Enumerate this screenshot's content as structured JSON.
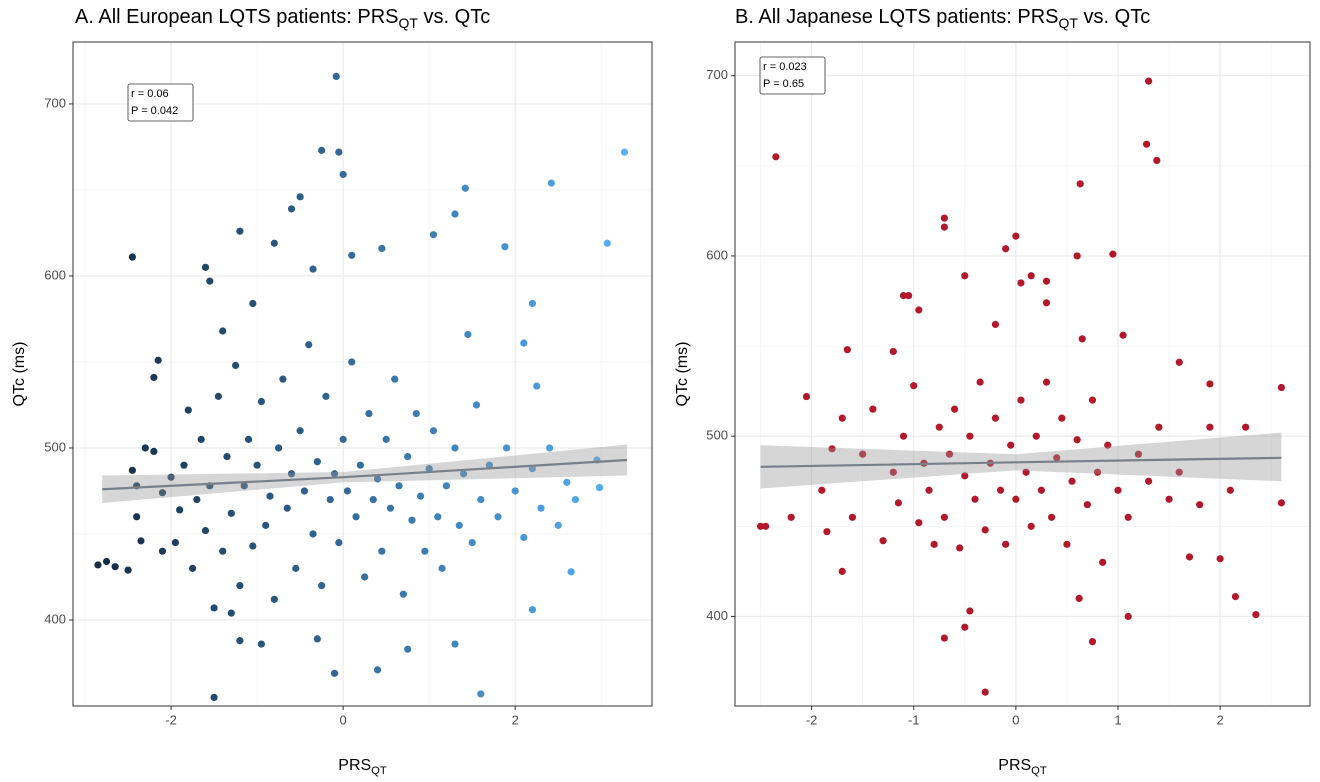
{
  "chart_data": [
    {
      "type": "scatter",
      "title": {
        "main": "A. All European LQTS patients: PRS",
        "sub": "QT",
        "rest": " vs. QTc"
      },
      "xlabel": {
        "main": "PRS",
        "sub": "QT"
      },
      "ylabel": "QTc (ms)",
      "annotation": [
        "r =  0.06",
        "P = 0.042"
      ],
      "color_scale": [
        "#132B43",
        "#56B1F7"
      ],
      "xlim": [
        -3.14,
        3.59
      ],
      "ylim": [
        350,
        736
      ],
      "xticks": [
        -2,
        0,
        2
      ],
      "yticks": [
        400,
        500,
        600,
        700
      ],
      "xminor": [
        -3,
        -1,
        1,
        3
      ],
      "yminor": [
        450,
        550,
        650
      ],
      "grid": true,
      "x": [
        -0.08,
        -0.05,
        -0.25,
        0,
        -0.5,
        3.27,
        3.07,
        2.42,
        1.42,
        1.3,
        -2.45,
        -1.6,
        -1.2,
        1.88,
        2.2,
        -1.55,
        -1.5,
        1.6,
        0.4,
        -0.1,
        0.75,
        -0.3,
        -2.85,
        -2.75,
        -2.65,
        -2.5,
        -2.1,
        2.2,
        2.65,
        2.95,
        2.98,
        1.3,
        -1.3,
        -1.2,
        -0.95,
        -2.2,
        -2.15,
        -1.4,
        -0.8,
        -0.6,
        0.1,
        0.45,
        1.05,
        2.1,
        2.25,
        1.45,
        -1.05,
        -0.35,
        -2.45,
        -2.4,
        -2.3,
        -2.35,
        -2.4,
        -2.2,
        -2.1,
        -2.0,
        -1.95,
        -1.9,
        -1.85,
        -1.8,
        -1.75,
        -1.7,
        -1.65,
        -1.6,
        -1.55,
        -1.5,
        -1.45,
        -1.4,
        -1.35,
        -1.3,
        -1.25,
        -1.2,
        -1.15,
        -1.1,
        -1.05,
        -1.0,
        -0.95,
        -0.9,
        -0.85,
        -0.8,
        -0.75,
        -0.7,
        -0.65,
        -0.6,
        -0.55,
        -0.5,
        -0.45,
        -0.4,
        -0.35,
        -0.3,
        -0.25,
        -0.2,
        -0.15,
        -0.1,
        -0.05,
        0,
        0.05,
        0.1,
        0.15,
        0.2,
        0.25,
        0.3,
        0.35,
        0.4,
        0.45,
        0.5,
        0.55,
        0.6,
        0.65,
        0.7,
        0.75,
        0.8,
        0.85,
        0.9,
        0.95,
        1.0,
        1.05,
        1.1,
        1.15,
        1.2,
        1.3,
        1.35,
        1.4,
        1.5,
        1.55,
        1.6,
        1.7,
        1.8,
        1.9,
        2.0,
        2.1,
        2.2,
        2.3,
        2.4,
        2.5,
        2.6,
        2.7
      ],
      "values": [
        716,
        672,
        673,
        659,
        646,
        672,
        619,
        654,
        651,
        636,
        611,
        605,
        626,
        617,
        584,
        597,
        355,
        357,
        371,
        369,
        383,
        389,
        432,
        434,
        431,
        429,
        440,
        406,
        428,
        493,
        477,
        386,
        404,
        388,
        386,
        541,
        551,
        568,
        619,
        639,
        612,
        616,
        624,
        561,
        536,
        566,
        584,
        604,
        487,
        478,
        500,
        446,
        460,
        498,
        474,
        483,
        445,
        464,
        490,
        522,
        430,
        470,
        505,
        452,
        478,
        407,
        530,
        440,
        495,
        462,
        548,
        420,
        478,
        505,
        443,
        490,
        527,
        455,
        472,
        412,
        500,
        540,
        465,
        485,
        430,
        510,
        475,
        560,
        450,
        492,
        420,
        530,
        470,
        485,
        445,
        505,
        475,
        550,
        460,
        490,
        425,
        520,
        470,
        482,
        440,
        505,
        465,
        540,
        478,
        415,
        495,
        458,
        520,
        472,
        440,
        488,
        510,
        460,
        430,
        478,
        500,
        455,
        485,
        445,
        525,
        470,
        490,
        460,
        500,
        475,
        448,
        488,
        465,
        500,
        455,
        480,
        470
      ],
      "fit": {
        "x": [
          -2.8,
          0,
          3.3
        ],
        "y": [
          476,
          483,
          493
        ],
        "lower": [
          468,
          480,
          484
        ],
        "upper": [
          484,
          486,
          502
        ]
      }
    },
    {
      "type": "scatter",
      "title": {
        "main": "B. All Japanese LQTS patients: PRS",
        "sub": "QT",
        "rest": " vs. QTc"
      },
      "xlabel": {
        "main": "PRS",
        "sub": "QT"
      },
      "ylabel": "QTc (ms)",
      "annotation": [
        "r =  0.023",
        "P = 0.65"
      ],
      "color": "#B2182B",
      "xlim": [
        -2.75,
        2.88
      ],
      "ylim": [
        350.3,
        718.7
      ],
      "xticks": [
        -2,
        -1,
        0,
        1,
        2
      ],
      "yticks": [
        400,
        500,
        600,
        700
      ],
      "xminor": [
        -2.5,
        -1.5,
        -0.5,
        0.5,
        1.5,
        2.5
      ],
      "yminor": [
        450,
        550,
        650
      ],
      "grid": true,
      "x": [
        -2.35,
        1.3,
        1.28,
        1.38,
        0.63,
        -0.7,
        -0.7,
        0,
        -0.1,
        0.95,
        0.6,
        -0.3,
        0.75,
        -0.7,
        1.1,
        2.35,
        2.15,
        -2.5,
        -2.45,
        -2.2,
        2.6,
        2.6,
        -2.05,
        -1.1,
        -1.05,
        -0.95,
        -0.5,
        0.3,
        0.15,
        0.05,
        0.3,
        -0.2,
        -1.65,
        -1.2,
        0.65,
        1.05,
        1.6,
        1.9,
        2.0,
        -0.5,
        -0.45,
        -1.7,
        1.7,
        0.62,
        -1.9,
        -1.85,
        -1.8,
        -1.7,
        -1.6,
        -1.5,
        -1.4,
        -1.3,
        -1.2,
        -1.15,
        -1.1,
        -1.0,
        -0.95,
        -0.9,
        -0.85,
        -0.8,
        -0.75,
        -0.7,
        -0.65,
        -0.6,
        -0.55,
        -0.5,
        -0.45,
        -0.4,
        -0.35,
        -0.3,
        -0.25,
        -0.2,
        -0.15,
        -0.1,
        -0.05,
        0,
        0.05,
        0.1,
        0.15,
        0.2,
        0.25,
        0.3,
        0.35,
        0.4,
        0.45,
        0.5,
        0.55,
        0.6,
        0.7,
        0.75,
        0.8,
        0.85,
        0.9,
        1.0,
        1.1,
        1.2,
        1.3,
        1.4,
        1.5,
        1.6,
        1.8,
        1.9,
        2.1,
        2.25
      ],
      "values": [
        655,
        697,
        662,
        653,
        640,
        621,
        616,
        611,
        604,
        601,
        600,
        358,
        386,
        388,
        400,
        401,
        411,
        450,
        450,
        455,
        527,
        463,
        522,
        578,
        578,
        570,
        589,
        586,
        589,
        585,
        574,
        562,
        548,
        547,
        554,
        556,
        541,
        529,
        432,
        394,
        403,
        425,
        433,
        410,
        470,
        447,
        493,
        510,
        455,
        490,
        515,
        442,
        480,
        463,
        500,
        528,
        452,
        485,
        470,
        440,
        505,
        455,
        490,
        515,
        438,
        478,
        500,
        465,
        530,
        448,
        485,
        510,
        470,
        440,
        495,
        465,
        520,
        480,
        450,
        500,
        470,
        530,
        455,
        488,
        510,
        440,
        475,
        498,
        462,
        520,
        480,
        430,
        495,
        470,
        455,
        490,
        475,
        505,
        465,
        480,
        462,
        505,
        470,
        505
      ],
      "fit": {
        "x": [
          -2.5,
          0,
          2.6
        ],
        "y": [
          483,
          485.5,
          488
        ],
        "lower": [
          471,
          481,
          475
        ],
        "upper": [
          495,
          490,
          502
        ]
      }
    }
  ]
}
